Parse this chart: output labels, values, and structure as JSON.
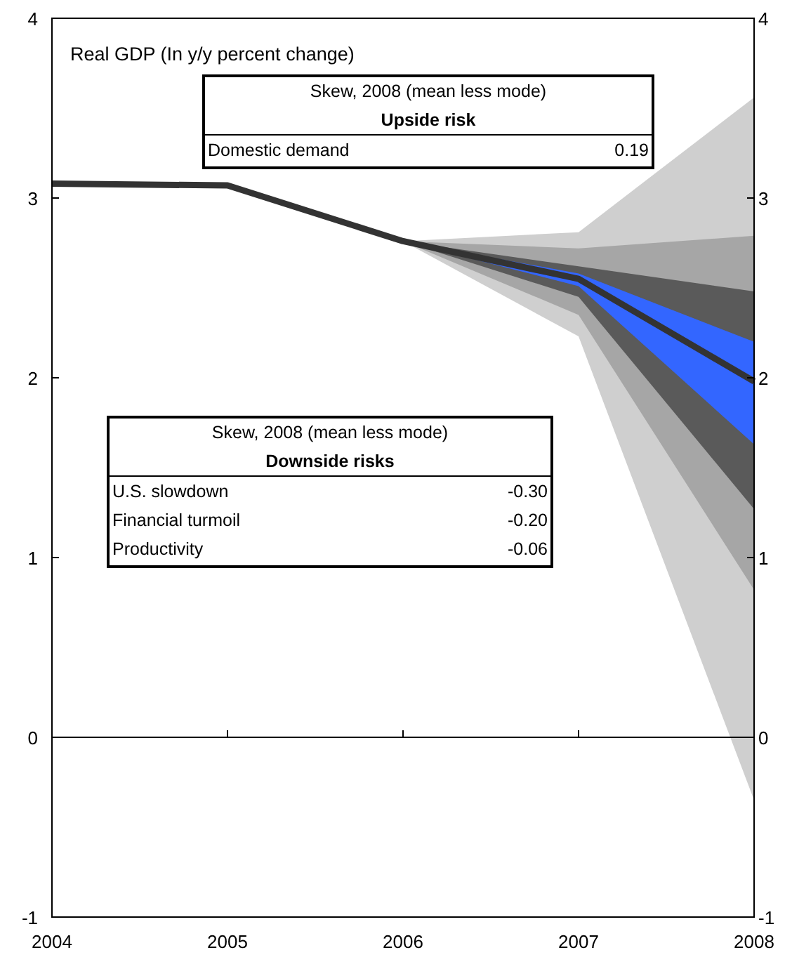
{
  "chart_data": {
    "type": "line",
    "title": "Real GDP (In y/y percent change)",
    "x": [
      2004,
      2005,
      2006,
      2007,
      2008
    ],
    "series": [
      {
        "type": "line",
        "color": "#cfcfcf",
        "x": [
          2006,
          2007,
          2008
        ],
        "values": [
          null,
          null,
          null
        ],
        "lower": [
          2.76,
          2.23,
          -0.35
        ],
        "upper": [
          2.76,
          2.81,
          3.56
        ]
      },
      {
        "type": "line",
        "color": "#a6a6a6",
        "x": [
          2006,
          2007,
          2008
        ],
        "values": [
          null,
          null,
          null
        ],
        "lower": [
          2.76,
          2.35,
          0.82
        ],
        "upper": [
          2.76,
          2.72,
          2.79
        ]
      },
      {
        "type": "line",
        "color": "#5a5a5a",
        "x": [
          2006,
          2007,
          2008
        ],
        "values": [
          null,
          null,
          null
        ],
        "lower": [
          2.76,
          2.45,
          1.27
        ],
        "upper": [
          2.76,
          2.62,
          2.48
        ]
      },
      {
        "type": "line",
        "color": "#3366ff",
        "x": [
          2006,
          2007,
          2008
        ],
        "values": [
          null,
          null,
          null
        ],
        "lower": [
          2.76,
          2.51,
          1.63
        ],
        "upper": [
          2.76,
          2.58,
          2.2
        ]
      },
      {
        "type": "line",
        "color": "#333333",
        "values": [
          3.08,
          3.07,
          2.76,
          2.55,
          1.98
        ]
      }
    ],
    "xlim": [
      2004,
      2008
    ],
    "xticks": [
      2004,
      2005,
      2006,
      2007,
      2008
    ],
    "ylim": [
      -1,
      4
    ],
    "yticks": [
      -1,
      0,
      1,
      2,
      3,
      4
    ],
    "y2lim": [
      -1,
      4
    ],
    "y2ticks": [
      -1,
      0,
      1,
      2,
      3,
      4
    ],
    "ref_lines": [
      {
        "axis": "y",
        "value": 0,
        "color": "#000000"
      }
    ],
    "annotations": [
      "Skew, 2008 (mean less mode)",
      "Upside risk",
      "Domestic demand",
      "0.19",
      "Skew, 2008 (mean less mode)",
      "Downside risks",
      "U.S. slowdown",
      "-0.30",
      "Financial turmoil",
      "-0.20",
      "Productivity",
      "-0.06"
    ],
    "grid": false,
    "line_style": "solid",
    "marker": "none"
  }
}
